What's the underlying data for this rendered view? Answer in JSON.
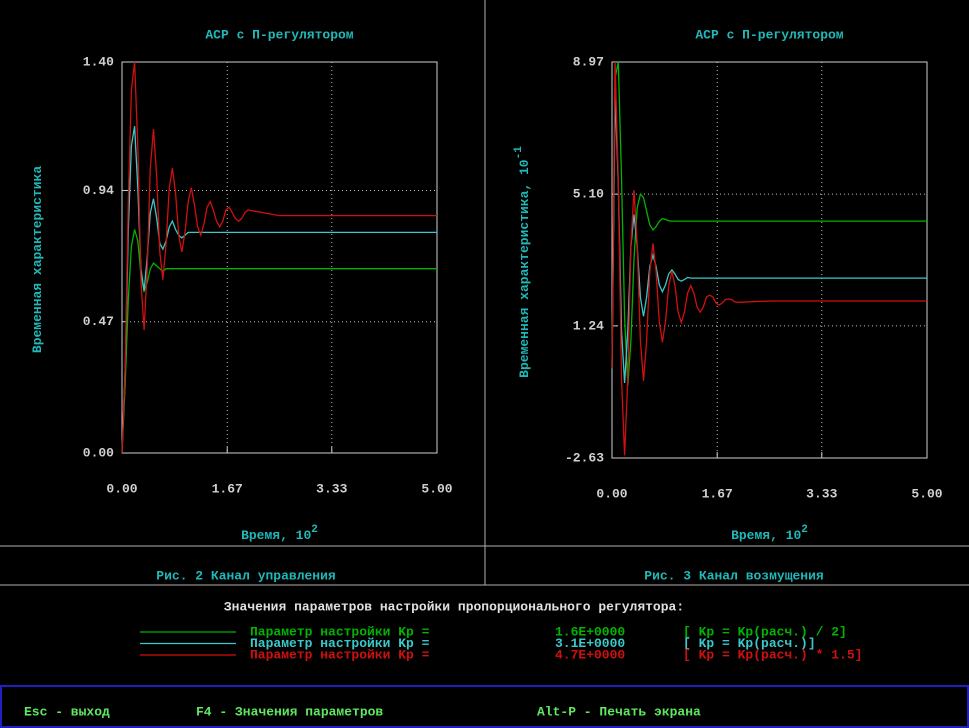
{
  "chart_data": [
    {
      "type": "line",
      "title": "АСР с П-регулятором",
      "ylabel": "Временная характеристика",
      "xlabel": "Время, 10",
      "xlabel_exp": "2",
      "x": [
        0,
        0.05,
        0.1,
        0.15,
        0.2,
        0.25,
        0.3,
        0.35,
        0.4,
        0.45,
        0.5,
        0.55,
        0.6,
        0.65,
        0.7,
        0.75,
        0.8,
        0.85,
        0.9,
        0.95,
        1,
        1.05,
        1.1,
        1.15,
        1.2,
        1.25,
        1.3,
        1.35,
        1.4,
        1.45,
        1.5,
        1.55,
        1.6,
        1.65,
        1.7,
        1.75,
        1.8,
        1.85,
        1.9,
        1.95,
        2,
        2.5,
        3,
        3.5,
        4,
        4.5,
        5
      ],
      "series": [
        {
          "color": "#00b400",
          "values": [
            0,
            0.25,
            0.55,
            0.74,
            0.8,
            0.76,
            0.64,
            0.58,
            0.61,
            0.66,
            0.68,
            0.67,
            0.66,
            0.65,
            0.66,
            0.66,
            0.66,
            0.66,
            0.66,
            0.66,
            0.66,
            0.66,
            0.66,
            0.66,
            0.66,
            0.66,
            0.66,
            0.66,
            0.66,
            0.66,
            0.66,
            0.66,
            0.66,
            0.66,
            0.66,
            0.66,
            0.66,
            0.66,
            0.66,
            0.66,
            0.66,
            0.66,
            0.66,
            0.66,
            0.66,
            0.66,
            0.66
          ]
        },
        {
          "color": "#3cc8c8",
          "values": [
            0,
            0.3,
            0.8,
            1.1,
            1.17,
            0.95,
            0.66,
            0.58,
            0.7,
            0.86,
            0.91,
            0.84,
            0.75,
            0.73,
            0.76,
            0.81,
            0.83,
            0.8,
            0.78,
            0.77,
            0.78,
            0.79,
            0.79,
            0.79,
            0.79,
            0.79,
            0.79,
            0.79,
            0.79,
            0.79,
            0.79,
            0.79,
            0.79,
            0.79,
            0.79,
            0.79,
            0.79,
            0.79,
            0.79,
            0.79,
            0.79,
            0.79,
            0.79,
            0.79,
            0.79,
            0.79,
            0.79
          ]
        },
        {
          "color": "#d01010",
          "values": [
            0,
            0.3,
            0.9,
            1.3,
            1.4,
            1.1,
            0.62,
            0.44,
            0.66,
            1.02,
            1.16,
            0.99,
            0.72,
            0.62,
            0.75,
            0.95,
            1.02,
            0.93,
            0.78,
            0.72,
            0.79,
            0.9,
            0.95,
            0.89,
            0.81,
            0.78,
            0.82,
            0.88,
            0.9,
            0.87,
            0.83,
            0.81,
            0.83,
            0.87,
            0.88,
            0.86,
            0.84,
            0.83,
            0.84,
            0.86,
            0.87,
            0.85,
            0.85,
            0.85,
            0.85,
            0.85,
            0.85
          ]
        }
      ],
      "xlim": [
        0,
        5
      ],
      "xticks": [
        {
          "value": 0,
          "label": "0.00"
        },
        1.67,
        3.33,
        {
          "value": 5,
          "label": "5.00"
        }
      ],
      "ylim": [
        0,
        1.4
      ],
      "yticks": [
        {
          "value": 0,
          "label": "0.00"
        },
        0.47,
        0.94,
        {
          "value": 1.4,
          "label": "1.40"
        }
      ],
      "grid": true,
      "caption": "Рис. 2 Канал управления"
    },
    {
      "type": "line",
      "title": "АСР с П-регулятором",
      "ylabel": "Временная характеристика, 10",
      "ylabel_exp": "-1",
      "xlabel": "Время, 10",
      "xlabel_exp": "2",
      "x": [
        0,
        0.05,
        0.1,
        0.15,
        0.2,
        0.25,
        0.3,
        0.35,
        0.4,
        0.45,
        0.5,
        0.55,
        0.6,
        0.65,
        0.7,
        0.75,
        0.8,
        0.85,
        0.9,
        0.95,
        1,
        1.05,
        1.1,
        1.15,
        1.2,
        1.25,
        1.3,
        1.35,
        1.4,
        1.45,
        1.5,
        1.55,
        1.6,
        1.65,
        1.7,
        1.75,
        1.8,
        1.85,
        1.9,
        1.95,
        2,
        2.5,
        3,
        3.5,
        4,
        4.5,
        5
      ],
      "series": [
        {
          "color": "#00b400",
          "values": [
            0,
            8.5,
            8.97,
            5.6,
            1.5,
            -0.5,
            0.8,
            3.2,
            4.7,
            5.1,
            5.0,
            4.6,
            4.2,
            4.05,
            4.15,
            4.3,
            4.38,
            4.36,
            4.32,
            4.31,
            4.31,
            4.31,
            4.31,
            4.31,
            4.31,
            4.31,
            4.31,
            4.31,
            4.31,
            4.31,
            4.31,
            4.31,
            4.31,
            4.31,
            4.31,
            4.31,
            4.31,
            4.31,
            4.31,
            4.31,
            4.31,
            4.31,
            4.31,
            4.31,
            4.31,
            4.31,
            4.31
          ]
        },
        {
          "color": "#3cc8c8",
          "values": [
            0,
            8.1,
            5.37,
            1.1,
            -0.43,
            1.1,
            3.57,
            4.5,
            3.57,
            2.08,
            1.52,
            2.08,
            2.98,
            3.31,
            2.98,
            2.44,
            2.24,
            2.44,
            2.76,
            2.88,
            2.76,
            2.6,
            2.55,
            2.6,
            2.66,
            2.64,
            2.64,
            2.64,
            2.64,
            2.64,
            2.64,
            2.64,
            2.64,
            2.64,
            2.64,
            2.64,
            2.64,
            2.64,
            2.64,
            2.64,
            2.64,
            2.64,
            2.64,
            2.64,
            2.64,
            2.64,
            2.64
          ]
        },
        {
          "color": "#d01010",
          "values": [
            0,
            8.97,
            5.47,
            -0.29,
            -2.55,
            -0.29,
            3.6,
            5.22,
            3.6,
            0.8,
            -0.37,
            0.8,
            2.82,
            3.66,
            2.82,
            1.36,
            0.76,
            1.36,
            2.41,
            2.84,
            2.41,
            1.65,
            1.34,
            1.65,
            2.2,
            2.42,
            2.2,
            1.8,
            1.64,
            1.8,
            2.09,
            2.14,
            2.09,
            1.91,
            1.85,
            1.91,
            2.01,
            2.03,
            2.01,
            1.94,
            1.93,
            1.97,
            1.97,
            1.97,
            1.97,
            1.97,
            1.97
          ]
        }
      ],
      "xlim": [
        0,
        5
      ],
      "xticks": [
        {
          "value": 0,
          "label": "0.00"
        },
        1.67,
        3.33,
        {
          "value": 5,
          "label": "5.00"
        }
      ],
      "ylim": [
        -2.63,
        8.97
      ],
      "yticks": [
        -2.63,
        1.24,
        {
          "value": 5.1,
          "label": "5.10"
        },
        8.97
      ],
      "grid": true,
      "caption": "Рис. 3 Канал возмущения"
    }
  ],
  "legend": {
    "title": "Значения параметров настройки пропорционального регулятора:",
    "rows": [
      {
        "color": "#00b400",
        "label": "Параметр настройки Kp =",
        "value": "1.6E+0000",
        "note": "[ Kp = Kp(расч.) / 2]"
      },
      {
        "color": "#3cc8c8",
        "label": "Параметр настройки Kp =",
        "value": "3.1E+0000",
        "note": "[ Kp = Kp(расч.)]"
      },
      {
        "color": "#d01010",
        "label": "Параметр настройки Kp =",
        "value": "4.7E+0000",
        "note": "[ Kp = Kp(расч.) * 1.5]"
      }
    ]
  },
  "footer": [
    "Esc - выход",
    "F4 - Значения параметров",
    "Alt-P - Печать экрана"
  ]
}
